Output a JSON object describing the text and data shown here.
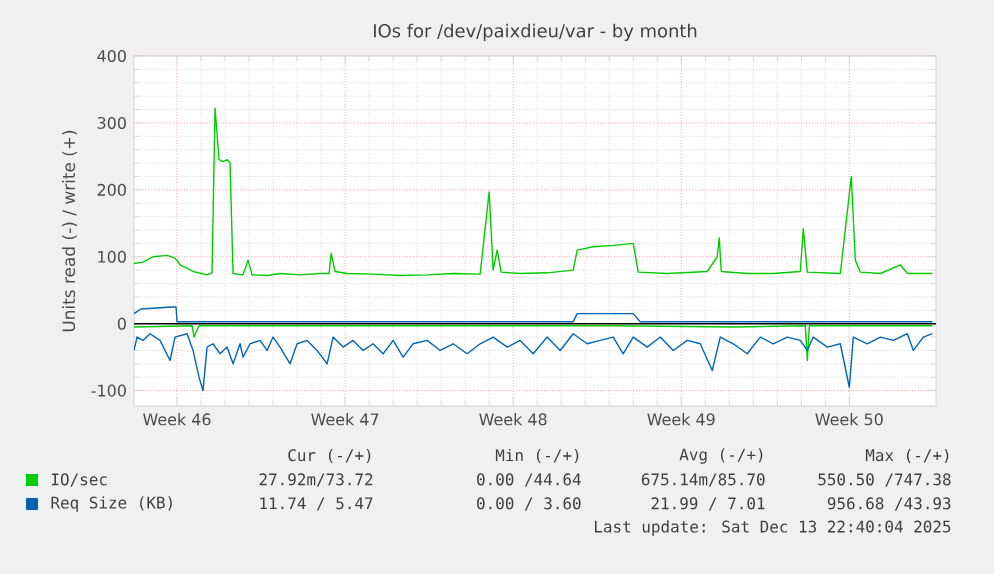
{
  "chart_data": {
    "type": "line",
    "title": "IOs for /dev/paixdieu/var - by month",
    "ylabel": "Units read (-) / write (+)",
    "xlim": [
      "2025-11-10T13:00",
      "2025-12-13T22:40"
    ],
    "ylim": [
      -123,
      400
    ],
    "xticks": [
      {
        "value": "2025-11-12T08:00",
        "label": "Week 46"
      },
      {
        "value": "2025-11-19T08:00",
        "label": "Week 47"
      },
      {
        "value": "2025-11-26T08:00",
        "label": "Week 48"
      },
      {
        "value": "2025-12-03T08:00",
        "label": "Week 49"
      },
      {
        "value": "2025-12-10T08:00",
        "label": "Week 50"
      }
    ],
    "yticks": [
      -100,
      0,
      100,
      200,
      300,
      400
    ],
    "grid": true,
    "legend": "bottom",
    "ref_lines": [
      {
        "axis": "y",
        "value": 0,
        "color": "#000000"
      }
    ],
    "series": [
      {
        "name": "IO/sec",
        "color": "#00cc00",
        "x": [
          "2025-11-10T13:00",
          "2025-11-10T22:00",
          "2025-11-11T08:00",
          "2025-11-11T22:00",
          "2025-11-12T06:00",
          "2025-11-12T11:00",
          "2025-11-13T00:00",
          "2025-11-13T14:00",
          "2025-11-13T19:00",
          "2025-11-13T22:00",
          "2025-11-14T02:00",
          "2025-11-14T06:00",
          "2025-11-14T10:00",
          "2025-11-14T13:00",
          "2025-11-14T16:00",
          "2025-11-15T02:00",
          "2025-11-15T07:00",
          "2025-11-15T11:00",
          "2025-11-16T02:00",
          "2025-11-16T15:00",
          "2025-11-17T11:00",
          "2025-11-18T07:00",
          "2025-11-18T16:00",
          "2025-11-18T18:00",
          "2025-11-18T22:00",
          "2025-11-19T10:00",
          "2025-11-20T12:00",
          "2025-11-21T15:00",
          "2025-11-22T18:00",
          "2025-11-23T20:00",
          "2025-11-24T23:00",
          "2025-11-25T08:00",
          "2025-11-25T12:00",
          "2025-11-25T16:00",
          "2025-11-25T20:00",
          "2025-11-26T15:00",
          "2025-11-27T18:00",
          "2025-11-28T20:00",
          "2025-11-29T00:00",
          "2025-11-29T16:00",
          "2025-11-30T12:00",
          "2025-12-01T08:00",
          "2025-12-01T13:00",
          "2025-12-02T18:00",
          "2025-12-04T10:00",
          "2025-12-04T20:00",
          "2025-12-04T22:00",
          "2025-12-05T00:00",
          "2025-12-06T02:00",
          "2025-12-07T04:00",
          "2025-12-08T07:00",
          "2025-12-08T10:00",
          "2025-12-08T14:00",
          "2025-12-09T23:00",
          "2025-12-10T10:00",
          "2025-12-10T14:00",
          "2025-12-10T19:00",
          "2025-12-11T15:00",
          "2025-12-12T11:00",
          "2025-12-12T18:00",
          "2025-12-13T19:00"
        ],
        "values": [
          90,
          92,
          100,
          102,
          98,
          88,
          78,
          73,
          76,
          322,
          245,
          242,
          245,
          240,
          75,
          73,
          95,
          73,
          72,
          75,
          73,
          75,
          75,
          105,
          78,
          75,
          74,
          72,
          73,
          75,
          74,
          197,
          80,
          110,
          77,
          75,
          76,
          80,
          110,
          115,
          117,
          120,
          77,
          75,
          78,
          100,
          128,
          78,
          75,
          75,
          78,
          142,
          77,
          75,
          220,
          95,
          77,
          75,
          88,
          75,
          75
        ]
      },
      {
        "color": "#00cc00",
        "x": [
          "2025-11-10T13:00",
          "2025-11-12T23:00",
          "2025-11-13T01:00",
          "2025-11-13T06:00",
          "2025-11-13T13:00",
          "2025-11-20T13:00",
          "2025-11-30T13:00",
          "2025-12-05T13:00",
          "2025-12-08T12:00",
          "2025-12-08T14:00",
          "2025-12-08T16:00",
          "2025-12-13T19:00"
        ],
        "values": [
          -5,
          -3,
          -20,
          -3,
          -3,
          -3,
          -3,
          -5,
          -3,
          -55,
          -3,
          -3
        ]
      },
      {
        "name": "Req Size (KB)",
        "color": "#0066b3",
        "x": [
          "2025-11-10T13:00",
          "2025-11-10T20:00",
          "2025-11-12T03:00",
          "2025-11-12T07:00",
          "2025-11-12T08:00",
          "2025-11-28T20:00",
          "2025-11-29T00:00",
          "2025-12-01T08:00",
          "2025-12-01T15:00",
          "2025-12-13T19:00"
        ],
        "values": [
          15,
          22,
          25,
          25,
          3,
          3,
          15,
          15,
          3,
          3
        ]
      },
      {
        "color": "#0066b3",
        "x": [
          "2025-11-10T13:00",
          "2025-11-10T16:00",
          "2025-11-10T22:00",
          "2025-11-11T05:00",
          "2025-11-11T15:00",
          "2025-11-12T01:00",
          "2025-11-12T06:00",
          "2025-11-12T18:00",
          "2025-11-13T00:00",
          "2025-11-13T06:00",
          "2025-11-13T10:00",
          "2025-11-13T14:00",
          "2025-11-13T20:00",
          "2025-11-14T03:00",
          "2025-11-14T10:00",
          "2025-11-14T16:00",
          "2025-11-14T23:00",
          "2025-11-15T02:00",
          "2025-11-15T09:00",
          "2025-11-15T19:00",
          "2025-11-16T02:00",
          "2025-11-16T08:00",
          "2025-11-16T15:00",
          "2025-11-17T01:00",
          "2025-11-17T08:00",
          "2025-11-17T18:00",
          "2025-11-18T04:00",
          "2025-11-18T14:00",
          "2025-11-18T20:00",
          "2025-11-19T06:00",
          "2025-11-19T16:00",
          "2025-11-20T02:00",
          "2025-11-20T12:00",
          "2025-11-20T22:00",
          "2025-11-21T08:00",
          "2025-11-21T18:00",
          "2025-11-22T04:00",
          "2025-11-22T18:00",
          "2025-11-23T07:00",
          "2025-11-23T20:00",
          "2025-11-24T10:00",
          "2025-11-24T23:00",
          "2025-11-25T12:00",
          "2025-11-26T02:00",
          "2025-11-26T15:00",
          "2025-11-27T04:00",
          "2025-11-27T18:00",
          "2025-11-28T07:00",
          "2025-11-28T20:00",
          "2025-11-29T10:00",
          "2025-11-29T23:00",
          "2025-11-30T12:00",
          "2025-11-30T22:00",
          "2025-12-01T08:00",
          "2025-12-01T22:00",
          "2025-12-02T11:00",
          "2025-12-03T00:00",
          "2025-12-03T14:00",
          "2025-12-04T03:00",
          "2025-12-04T15:00",
          "2025-12-04T23:00",
          "2025-12-05T12:00",
          "2025-12-06T02:00",
          "2025-12-06T15:00",
          "2025-12-07T04:00",
          "2025-12-07T18:00",
          "2025-12-08T07:00",
          "2025-12-08T14:00",
          "2025-12-08T20:00",
          "2025-12-09T10:00",
          "2025-12-09T23:00",
          "2025-12-10T08:00",
          "2025-12-10T12:00",
          "2025-12-11T02:00",
          "2025-12-11T15:00",
          "2025-12-12T04:00",
          "2025-12-12T18:00",
          "2025-12-13T00:00",
          "2025-12-13T10:00",
          "2025-12-13T19:00"
        ],
        "values": [
          -40,
          -20,
          -25,
          -15,
          -25,
          -55,
          -20,
          -15,
          -40,
          -80,
          -100,
          -35,
          -30,
          -45,
          -35,
          -60,
          -30,
          -50,
          -30,
          -25,
          -40,
          -20,
          -35,
          -60,
          -30,
          -25,
          -40,
          -60,
          -20,
          -35,
          -25,
          -40,
          -30,
          -45,
          -25,
          -50,
          -30,
          -25,
          -40,
          -30,
          -45,
          -30,
          -20,
          -35,
          -25,
          -45,
          -20,
          -40,
          -15,
          -30,
          -25,
          -20,
          -45,
          -20,
          -35,
          -20,
          -40,
          -25,
          -30,
          -70,
          -20,
          -30,
          -45,
          -20,
          -30,
          -20,
          -25,
          -40,
          -20,
          -35,
          -30,
          -95,
          -20,
          -30,
          -20,
          -25,
          -15,
          -40,
          -20,
          -15
        ]
      }
    ],
    "annotations": [
      "Cur (-/+)",
      "Min (-/+)",
      "Avg (-/+)",
      "Max (-/+)",
      "27.92m/73.72",
      "0.00 /44.64",
      "675.14m/85.70",
      "550.50 /747.38",
      "11.74 / 5.47",
      "0.00 / 3.60",
      "21.99 / 7.01",
      "956.68 /43.93",
      "Last update: Sat Dec 13 22:40:04 2025"
    ]
  }
}
